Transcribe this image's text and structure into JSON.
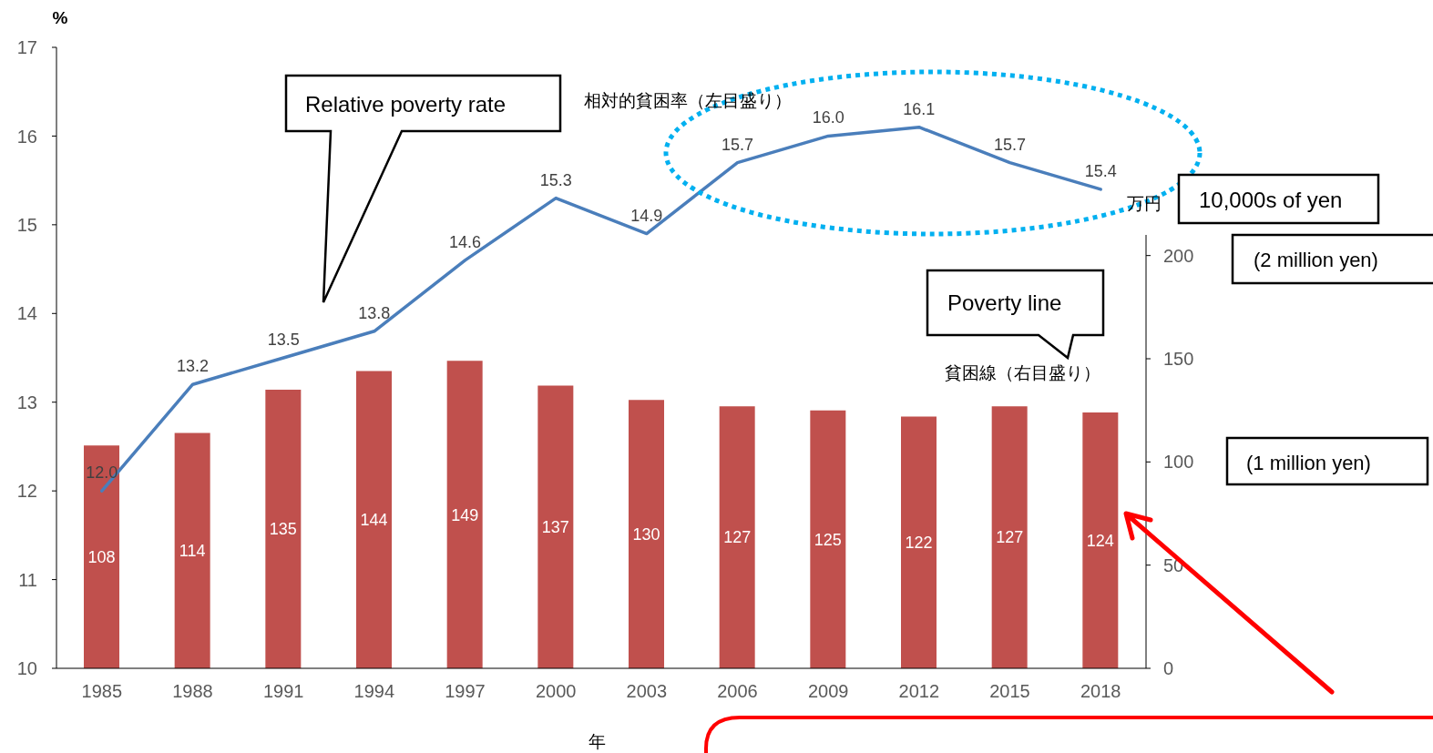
{
  "chart_data": {
    "type": "bar",
    "xlabel": "年",
    "ylabel": "%",
    "y2label": "万円",
    "categories": [
      "1985",
      "1988",
      "1991",
      "1994",
      "1997",
      "2000",
      "2003",
      "2006",
      "2009",
      "2012",
      "2015",
      "2018"
    ],
    "series": [
      {
        "name": "貧困線（右目盛り）",
        "axis": "y2",
        "color": "#c0504d",
        "values": [
          108,
          114,
          135,
          144,
          149,
          137,
          130,
          127,
          125,
          122,
          127,
          124
        ],
        "value_labels": [
          "108",
          "114",
          "135",
          "144",
          "149",
          "137",
          "130",
          "127",
          "125",
          "122",
          "127",
          "124"
        ]
      },
      {
        "name": "相対的貧困率（左目盛り）",
        "type": "line",
        "color": "#4a7ebb",
        "values": [
          12.0,
          13.2,
          13.5,
          13.8,
          14.6,
          15.3,
          14.9,
          15.7,
          16.0,
          16.1,
          15.7,
          15.4
        ],
        "value_labels": [
          "12.0",
          "13.2",
          "13.5",
          "13.8",
          "14.6",
          "15.3",
          "14.9",
          "15.7",
          "16.0",
          "16.1",
          "15.7",
          "15.4"
        ]
      }
    ],
    "ylim": [
      10,
      17
    ],
    "yticks": [
      10,
      11,
      12,
      13,
      14,
      15,
      16,
      17
    ],
    "y2lim": [
      0,
      210
    ],
    "y2ticks": [
      0,
      50,
      100,
      150,
      200
    ],
    "marker": "none",
    "annotations": [
      "Relative poverty rate",
      "10,000s of yen",
      "(2 million yen)",
      "Poverty line",
      "(1 million yen)"
    ]
  }
}
